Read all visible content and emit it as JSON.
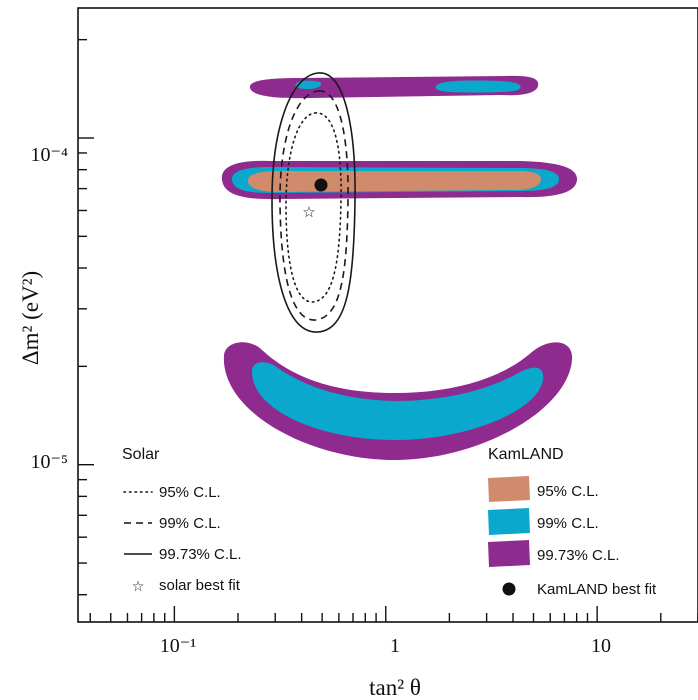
{
  "chart_data": {
    "type": "contour",
    "xlabel": "tan² θ",
    "ylabel": "Δm² (eV²)",
    "x_scale": "log",
    "y_scale": "log",
    "xlim": [
      0.035,
      30
    ],
    "ylim": [
      3.3e-06,
      0.00025
    ],
    "x_ticks": [
      {
        "value": 0.1,
        "label": "10⁻¹"
      },
      {
        "value": 1,
        "label": "1"
      },
      {
        "value": 10,
        "label": "10"
      }
    ],
    "y_ticks": [
      {
        "value": 0.0001,
        "label": "10⁻⁴"
      },
      {
        "value": 1e-05,
        "label": "10⁻⁵"
      }
    ],
    "colors": {
      "kamland_95": "#d08a6c",
      "kamland_99": "#0aa8cc",
      "kamland_9973": "#8f2a8e",
      "solar": "#1a1a1a"
    },
    "legend_solar": {
      "title": "Solar",
      "items": [
        {
          "label": "95% C.L.",
          "style": "dotted"
        },
        {
          "label": "99% C.L.",
          "style": "dashed"
        },
        {
          "label": "99.73% C.L.",
          "style": "solid"
        },
        {
          "label": "solar best fit",
          "marker": "star"
        }
      ]
    },
    "legend_kamland": {
      "title": "KamLAND",
      "items": [
        {
          "label": "95% C.L.",
          "color": "#d08a6c"
        },
        {
          "label": "99% C.L.",
          "color": "#0aa8cc"
        },
        {
          "label": "99.73% C.L.",
          "color": "#8f2a8e"
        },
        {
          "label": "KamLAND best fit",
          "marker": "dot"
        }
      ]
    },
    "solar_best_fit": {
      "x": 0.4,
      "y": 6.5e-05
    },
    "kamland_best_fit": {
      "x": 0.46,
      "y": 7.9e-05
    },
    "kamland_regions": [
      {
        "level": "99.73% C.L.",
        "bands": [
          {
            "x_range": [
              0.33,
              6.5
            ],
            "y_center": 0.00017
          },
          {
            "x_range": [
              0.22,
              8.0
            ],
            "y_center": 8.2e-05
          },
          {
            "x_range": [
              0.22,
              8.5
            ],
            "y_range": [
              1.05e-05,
              2.5e-05
            ]
          }
        ]
      },
      {
        "level": "99% C.L.",
        "bands": [
          {
            "x_range": [
              0.95,
              4.5
            ],
            "y_center": 0.00017
          },
          {
            "x_range": [
              0.26,
              6.5
            ],
            "y_center": 8e-05
          },
          {
            "x_range": [
              0.3,
              6.5
            ],
            "y_range": [
              1.3e-05,
              2.1e-05
            ]
          }
        ]
      },
      {
        "level": "95% C.L.",
        "bands": [
          {
            "x_range": [
              0.3,
              5.0
            ],
            "y_center": 7.9e-05
          }
        ]
      }
    ],
    "solar_contours": [
      {
        "level": "95% C.L.",
        "x_range": [
          0.31,
          0.55
        ],
        "y_range": [
          3.1e-05,
          0.00012
        ]
      },
      {
        "level": "99% C.L.",
        "x_range": [
          0.29,
          0.6
        ],
        "y_range": [
          2.9e-05,
          0.00016
        ]
      },
      {
        "level": "99.73% C.L.",
        "x_range": [
          0.26,
          0.66
        ],
        "y_range": [
          2.5e-05,
          0.00018
        ]
      }
    ]
  }
}
